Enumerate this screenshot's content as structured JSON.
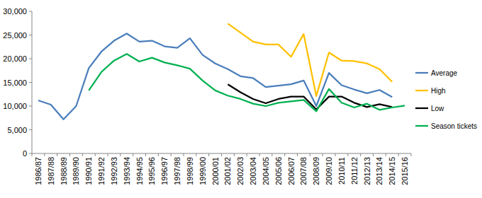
{
  "chart_data": {
    "type": "line",
    "categories": [
      "1986/87",
      "1987/88",
      "1988/89",
      "1989/90",
      "1990/91",
      "1991/92",
      "1992/93",
      "1993/94",
      "1994/95",
      "1995/96",
      "1996/97",
      "1997/98",
      "1998/99",
      "1999/00",
      "2000/01",
      "2001/02",
      "2002/03",
      "2003/04",
      "2004/05",
      "2005/06",
      "2006/07",
      "2007/08",
      "2008/09",
      "2009/10",
      "2010/11",
      "2011/12",
      "2012/13",
      "2013/14",
      "2014/15",
      "2015/16"
    ],
    "series": [
      {
        "name": "Average",
        "color": "#4a7ebb",
        "values": [
          11200,
          10300,
          7200,
          10000,
          18000,
          21500,
          23800,
          25300,
          23600,
          23800,
          22600,
          22300,
          24300,
          20800,
          19000,
          17800,
          16300,
          15900,
          14000,
          14300,
          14600,
          15400,
          10000,
          17000,
          14400,
          13500,
          12700,
          13400,
          11900,
          null
        ]
      },
      {
        "name": "High",
        "color": "#ffc000",
        "values": [
          null,
          null,
          null,
          null,
          null,
          null,
          null,
          null,
          null,
          null,
          null,
          null,
          null,
          null,
          null,
          27400,
          25500,
          23600,
          23000,
          23000,
          20400,
          25200,
          12100,
          21300,
          19600,
          19500,
          19000,
          17800,
          15100,
          null
        ]
      },
      {
        "name": "Low",
        "color": "#000000",
        "values": [
          null,
          null,
          null,
          null,
          null,
          null,
          null,
          null,
          null,
          null,
          null,
          null,
          null,
          null,
          null,
          14600,
          12900,
          11500,
          10600,
          11500,
          12000,
          12000,
          9300,
          12000,
          12000,
          10700,
          9800,
          10400,
          9800,
          null
        ]
      },
      {
        "name": "Season tickets",
        "color": "#00b050",
        "values": [
          null,
          null,
          null,
          null,
          13300,
          17200,
          19600,
          21000,
          19400,
          20200,
          19200,
          18600,
          17900,
          15400,
          13300,
          12200,
          11500,
          10500,
          10000,
          10700,
          11000,
          11300,
          8900,
          13600,
          10700,
          9700,
          10500,
          9200,
          9700,
          10100
        ]
      }
    ],
    "ylim": [
      0,
      30000
    ],
    "yticks": [
      0,
      {
        "value": 5000,
        "label": "5,000"
      },
      {
        "value": 10000,
        "label": "10,000"
      },
      {
        "value": 15000,
        "label": "15,000"
      },
      {
        "value": 20000,
        "label": "20,000"
      },
      {
        "value": 25000,
        "label": "25,000"
      },
      {
        "value": 30000,
        "label": "30,000"
      }
    ],
    "grid": false,
    "legend": "right"
  }
}
